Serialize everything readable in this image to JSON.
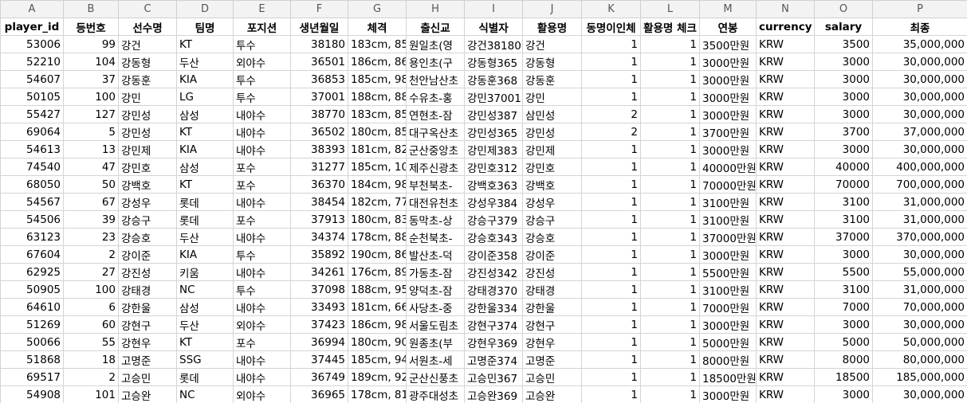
{
  "columns": [
    "A",
    "B",
    "C",
    "D",
    "E",
    "F",
    "G",
    "H",
    "I",
    "J",
    "K",
    "L",
    "M",
    "N",
    "O",
    "P"
  ],
  "header_row": [
    "player_id",
    "등번호",
    "선수명",
    "팀명",
    "포지션",
    "생년월일",
    "체격",
    "출신교",
    "식별자",
    "활용명",
    "동명이인체",
    "활용명 체크",
    "연봉",
    "currency",
    "salary",
    "최종"
  ],
  "rows": [
    [
      "53006",
      "99",
      "강건",
      "KT",
      "투수",
      "38180",
      "183cm, 85",
      "원일초(영",
      "강건38180",
      "강건",
      "1",
      "1",
      "3500만원",
      "KRW",
      "3500",
      "35,000,000"
    ],
    [
      "52210",
      "104",
      "강동형",
      "두산",
      "외야수",
      "36501",
      "186cm, 86",
      "용인초(구",
      "강동형365",
      "강동형",
      "1",
      "1",
      "3000만원",
      "KRW",
      "3000",
      "30,000,000"
    ],
    [
      "54607",
      "37",
      "강동훈",
      "KIA",
      "투수",
      "36853",
      "185cm, 98",
      "천안남산초",
      "강동훈368",
      "강동훈",
      "1",
      "1",
      "3000만원",
      "KRW",
      "3000",
      "30,000,000"
    ],
    [
      "50105",
      "100",
      "강민",
      "LG",
      "투수",
      "37001",
      "188cm, 88",
      "수유초-홍",
      "강민37001",
      "강민",
      "1",
      "1",
      "3000만원",
      "KRW",
      "3000",
      "30,000,000"
    ],
    [
      "55427",
      "127",
      "강민성",
      "삼성",
      "내야수",
      "38770",
      "183cm, 85",
      "연현초-잠",
      "강민성387",
      "삼민성",
      "2",
      "1",
      "3000만원",
      "KRW",
      "3000",
      "30,000,000"
    ],
    [
      "69064",
      "5",
      "강민성",
      "KT",
      "내야수",
      "36502",
      "180cm, 85",
      "대구옥산초",
      "강민성365",
      "강민성",
      "2",
      "1",
      "3700만원",
      "KRW",
      "3700",
      "37,000,000"
    ],
    [
      "54613",
      "13",
      "강민제",
      "KIA",
      "내야수",
      "38393",
      "181cm, 82",
      "군산중앙초",
      "강민제383",
      "강민제",
      "1",
      "1",
      "3000만원",
      "KRW",
      "3000",
      "30,000,000"
    ],
    [
      "74540",
      "47",
      "강민호",
      "삼성",
      "포수",
      "31277",
      "185cm, 10",
      "제주신광초",
      "강민호312",
      "강민호",
      "1",
      "1",
      "40000만원",
      "KRW",
      "40000",
      "400,000,000"
    ],
    [
      "68050",
      "50",
      "강백호",
      "KT",
      "포수",
      "36370",
      "184cm, 98",
      "부천북초-",
      "강백호363",
      "강백호",
      "1",
      "1",
      "70000만원",
      "KRW",
      "70000",
      "700,000,000"
    ],
    [
      "54567",
      "67",
      "강성우",
      "롯데",
      "내야수",
      "38454",
      "182cm, 77",
      "대전유천초",
      "강성우384",
      "강성우",
      "1",
      "1",
      "3100만원",
      "KRW",
      "3100",
      "31,000,000"
    ],
    [
      "54506",
      "39",
      "강승구",
      "롯데",
      "포수",
      "37913",
      "180cm, 83",
      "동막초-상",
      "강승구379",
      "강승구",
      "1",
      "1",
      "3100만원",
      "KRW",
      "3100",
      "31,000,000"
    ],
    [
      "63123",
      "23",
      "강승호",
      "두산",
      "내야수",
      "34374",
      "178cm, 88",
      "순천북초-",
      "강승호343",
      "강승호",
      "1",
      "1",
      "37000만원",
      "KRW",
      "37000",
      "370,000,000"
    ],
    [
      "67604",
      "2",
      "강이준",
      "KIA",
      "투수",
      "35892",
      "190cm, 86",
      "발산초-덕",
      "강이준358",
      "강이준",
      "1",
      "1",
      "3000만원",
      "KRW",
      "3000",
      "30,000,000"
    ],
    [
      "62925",
      "27",
      "강진성",
      "키움",
      "내야수",
      "34261",
      "176cm, 89",
      "가동초-잠",
      "강진성342",
      "강진성",
      "1",
      "1",
      "5500만원",
      "KRW",
      "5500",
      "55,000,000"
    ],
    [
      "50905",
      "100",
      "강태경",
      "NC",
      "투수",
      "37098",
      "188cm, 95",
      "양덕초-잠",
      "강태경370",
      "강태경",
      "1",
      "1",
      "3100만원",
      "KRW",
      "3100",
      "31,000,000"
    ],
    [
      "64610",
      "6",
      "강한울",
      "삼성",
      "내야수",
      "33493",
      "181cm, 66",
      "사당초-중",
      "강한울334",
      "강한울",
      "1",
      "1",
      "7000만원",
      "KRW",
      "7000",
      "70,000,000"
    ],
    [
      "51269",
      "60",
      "강현구",
      "두산",
      "외야수",
      "37423",
      "186cm, 98",
      "서울도림초",
      "강현구374",
      "강현구",
      "1",
      "1",
      "3000만원",
      "KRW",
      "3000",
      "30,000,000"
    ],
    [
      "50066",
      "55",
      "강현우",
      "KT",
      "포수",
      "36994",
      "180cm, 90",
      "원종초(부",
      "강현우369",
      "강현우",
      "1",
      "1",
      "5000만원",
      "KRW",
      "5000",
      "50,000,000"
    ],
    [
      "51868",
      "18",
      "고명준",
      "SSG",
      "내야수",
      "37445",
      "185cm, 94",
      "서원초-세",
      "고명준374",
      "고명준",
      "1",
      "1",
      "8000만원",
      "KRW",
      "8000",
      "80,000,000"
    ],
    [
      "69517",
      "2",
      "고승민",
      "롯데",
      "내야수",
      "36749",
      "189cm, 92",
      "군산신풍초",
      "고승민367",
      "고승민",
      "1",
      "1",
      "18500만원",
      "KRW",
      "18500",
      "185,000,000"
    ],
    [
      "54908",
      "101",
      "고승완",
      "NC",
      "외야수",
      "36965",
      "178cm, 81",
      "광주대성초",
      "고승완369",
      "고승완",
      "1",
      "1",
      "3000만원",
      "KRW",
      "3000",
      "30,000,000"
    ]
  ]
}
